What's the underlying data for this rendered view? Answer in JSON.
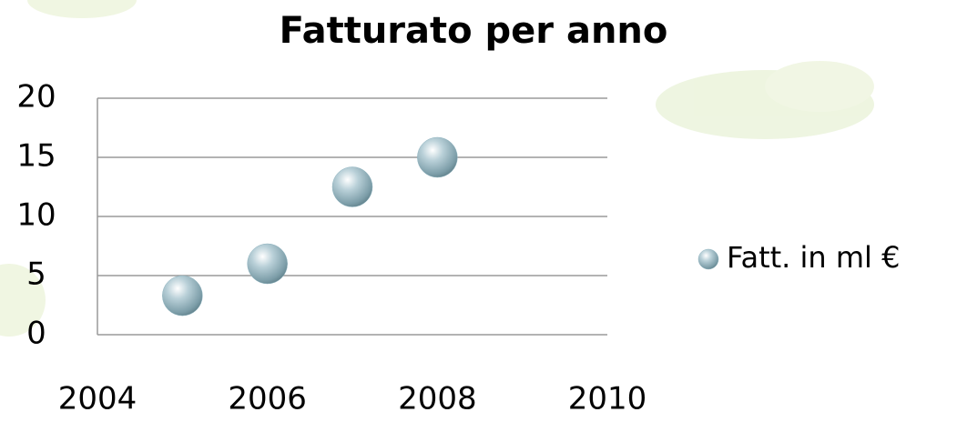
{
  "chart_data": {
    "type": "scatter",
    "title": "Fatturato per anno",
    "series": [
      {
        "name": "Fatt. in ml €",
        "color": "#8fb4c0",
        "x": [
          2005,
          2006,
          2007,
          2008
        ],
        "values": [
          3.3,
          6,
          12.5,
          15
        ]
      }
    ],
    "xlim": [
      2004,
      2010
    ],
    "xticks": [
      2004,
      2006,
      2008,
      2010
    ],
    "ylim": [
      0,
      20
    ],
    "yticks": [
      0,
      5,
      10,
      15,
      20
    ],
    "grid": true,
    "legend": "right"
  }
}
